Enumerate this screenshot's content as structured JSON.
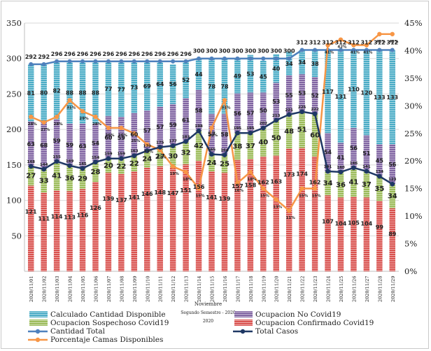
{
  "chart_data": {
    "type": "bar",
    "stacked": true,
    "title": "",
    "xlabel_lines": [
      "Noviembre",
      "Segundo Semestre - 2020",
      "2020"
    ],
    "ylim": [
      0,
      350
    ],
    "yticks": [
      50,
      100,
      150,
      200,
      250,
      300,
      350
    ],
    "y2lim": [
      0,
      0.45
    ],
    "y2ticks": [
      "0%",
      "5%",
      "10%",
      "15%",
      "20%",
      "25%",
      "30%",
      "35%",
      "40%",
      "45%"
    ],
    "categories": [
      "2020/11/01",
      "2020/11/02",
      "2020/11/03",
      "2020/11/04",
      "2020/11/05",
      "2020/11/06",
      "2020/11/07",
      "2020/11/08",
      "2020/11/09",
      "2020/11/10",
      "2020/11/11",
      "2020/11/12",
      "2020/11/13",
      "2020/11/14",
      "2020/11/15",
      "2020/11/16",
      "2020/11/17",
      "2020/11/18",
      "2020/11/19",
      "2020/11/20",
      "2020/11/21",
      "2020/11/22",
      "2020/11/23",
      "2020/11/24",
      "2020/11/25",
      "2020/11/26",
      "2020/11/27",
      "2020/11/28",
      "2020/11/29"
    ],
    "series": [
      {
        "name": "Ocupacion Confirmado Covid19",
        "axis": "left",
        "kind": "bar",
        "color": "#d9514e",
        "values": [
          121,
          111,
          114,
          113,
          116,
          126,
          139,
          137,
          141,
          146,
          148,
          147,
          151,
          156,
          141,
          139,
          157,
          158,
          162,
          163,
          173,
          174,
          162,
          107,
          104,
          105,
          104,
          99,
          89
        ]
      },
      {
        "name": "Ocupacion Sospechoso Covid19",
        "axis": "left",
        "kind": "bar",
        "color": "#9bbb59",
        "values": [
          27,
          33,
          41,
          36,
          29,
          28,
          20,
          22,
          22,
          24,
          27,
          30,
          32,
          42,
          24,
          25,
          38,
          37,
          40,
          50,
          48,
          51,
          60,
          34,
          36,
          41,
          37,
          35,
          34
        ]
      },
      {
        "name": "Ocupacion No Covid19",
        "axis": "left",
        "kind": "bar",
        "color": "#8064a2",
        "values": [
          63,
          68,
          59,
          59,
          63,
          54,
          60,
          59,
          60,
          57,
          57,
          59,
          61,
          58,
          57,
          58,
          56,
          57,
          50,
          53,
          55,
          53,
          52,
          54,
          41,
          56,
          51,
          45,
          56
        ]
      },
      {
        "name": "Calculado Cantidad Disponible",
        "axis": "left",
        "kind": "bar",
        "color": "#4bacc6",
        "values": [
          81,
          80,
          82,
          88,
          88,
          88,
          77,
          77,
          73,
          69,
          64,
          56,
          52,
          44,
          78,
          78,
          49,
          53,
          45,
          40,
          34,
          34,
          38,
          117,
          131,
          110,
          120,
          133,
          133
        ]
      },
      {
        "name": "Cantidad Total",
        "axis": "left",
        "kind": "line",
        "color": "#4f81bd",
        "values": [
          292,
          292,
          296,
          296,
          296,
          296,
          296,
          296,
          296,
          296,
          296,
          296,
          296,
          300,
          300,
          300,
          300,
          300,
          300,
          300,
          300,
          312,
          312,
          312,
          312,
          312,
          312,
          312,
          312
        ]
      },
      {
        "name": "Total Casos",
        "axis": "left",
        "kind": "line",
        "color": "#1f3864",
        "values": [
          148,
          144,
          155,
          149,
          145,
          154,
          159,
          159,
          163,
          170,
          175,
          177,
          183,
          198,
          165,
          164,
          195,
          195,
          202,
          213,
          221,
          225,
          222,
          141,
          140,
          146,
          141,
          134,
          123
        ]
      },
      {
        "name": "Porcentaje Camas Disponibles",
        "axis": "right",
        "kind": "line",
        "color": "#f79646",
        "values": [
          0.28,
          0.27,
          0.28,
          0.31,
          0.29,
          0.28,
          0.26,
          0.26,
          0.25,
          0.23,
          0.22,
          0.19,
          0.18,
          0.15,
          0.26,
          0.31,
          0.16,
          0.18,
          0.15,
          0.13,
          0.11,
          0.15,
          0.15,
          0.41,
          0.42,
          0.41,
          0.41,
          0.43,
          0.43
        ]
      }
    ],
    "extra_labels": {
      "total_casos_text": [
        "148",
        "144",
        "155",
        "149",
        "145",
        "154",
        "159",
        "159",
        "163",
        "170",
        "175",
        "177",
        "183",
        "198",
        "165",
        "164",
        "195",
        "195",
        "202",
        "213",
        "221",
        "225",
        "222",
        "141",
        "140",
        "146",
        "141",
        "134",
        "123"
      ],
      "percent_text": [
        "28%",
        "27%",
        "28%",
        "31%",
        "29%",
        "28%",
        "26%",
        "26%",
        "25%",
        "23%",
        "22%",
        "19%",
        "18%",
        "15%",
        "26%",
        "31%",
        "16%",
        "18%",
        "15%",
        "13%",
        "11%",
        "15%",
        "15%",
        "41%",
        "42%",
        "41%",
        "41%",
        "43%",
        "43%"
      ]
    },
    "legend": [
      "Calculado Cantidad Disponible",
      "Ocupacion No Covid19",
      "Ocupacion Sospechoso Covid19",
      "Ocupacion Confirmado Covid19",
      "Cantidad Total",
      "Total Casos",
      "Porcentaje Camas Disponibles"
    ],
    "legend_position": "bottom"
  }
}
